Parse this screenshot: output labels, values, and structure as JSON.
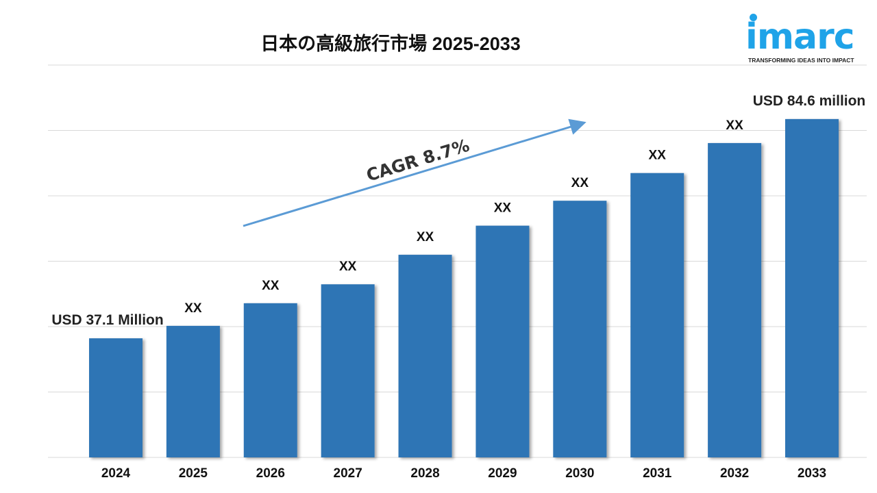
{
  "chart_data": {
    "type": "bar",
    "title": "日本の高級旅行市場 2025-2033",
    "categories": [
      "2024",
      "2025",
      "2026",
      "2027",
      "2028",
      "2029",
      "2030",
      "2031",
      "2032",
      "2033"
    ],
    "values": [
      37.1,
      39.8,
      44.7,
      48.8,
      55.2,
      61.5,
      66.9,
      72.9,
      79.4,
      84.6
    ],
    "value_labels": [
      "USD 37.1 Million",
      "XX",
      "XX",
      "XX",
      "XX",
      "XX",
      "XX",
      "XX",
      "XX",
      "USD 84.6 million"
    ],
    "unit": "USD million",
    "ylim": [
      11.3,
      96.3
    ],
    "grid": true,
    "gridlines": 7,
    "bar_color": "#2e74b5",
    "annotation": {
      "text": "CAGR 8.7%",
      "arrow_color": "#5b9bd5"
    },
    "xlabel": "",
    "ylabel": ""
  },
  "logo": {
    "word": "imarc",
    "tagline": "TRANSFORMING IDEAS INTO IMPACT",
    "color": "#1fa3e8"
  }
}
